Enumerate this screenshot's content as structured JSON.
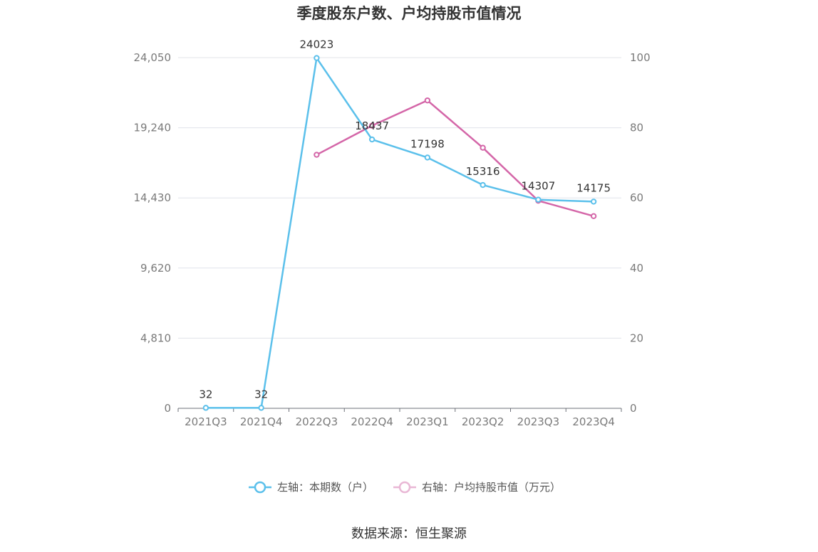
{
  "chart_data": {
    "type": "line",
    "title": "季度股东户数、户均持股市值情况",
    "categories": [
      "2021Q3",
      "2021Q4",
      "2022Q3",
      "2022Q4",
      "2023Q1",
      "2023Q2",
      "2023Q3",
      "2023Q4"
    ],
    "y_left": {
      "ticks": [
        "0",
        "4,810",
        "9,620",
        "14,430",
        "19,240",
        "24,050"
      ],
      "range": [
        0,
        24050
      ]
    },
    "y_right": {
      "ticks": [
        "0",
        "20",
        "40",
        "60",
        "80",
        "100"
      ],
      "range": [
        0,
        100
      ]
    },
    "grid": true,
    "legend_position": "bottom",
    "series": [
      {
        "name": "左轴：本期数（户）",
        "axis": "left",
        "color": "#5bc0eb",
        "values": [
          32,
          32,
          24023,
          18437,
          17198,
          15316,
          14307,
          14175
        ],
        "labels": [
          "32",
          "32",
          "24023",
          "18437",
          "17198",
          "15316",
          "14307",
          "14175"
        ]
      },
      {
        "name": "右轴：户均持股市值（万元）",
        "axis": "right",
        "color": "#d466a8",
        "values": [
          null,
          null,
          72.3,
          80.6,
          87.8,
          74.3,
          59.2,
          54.8
        ]
      }
    ],
    "source": "数据来源：恒生聚源"
  }
}
